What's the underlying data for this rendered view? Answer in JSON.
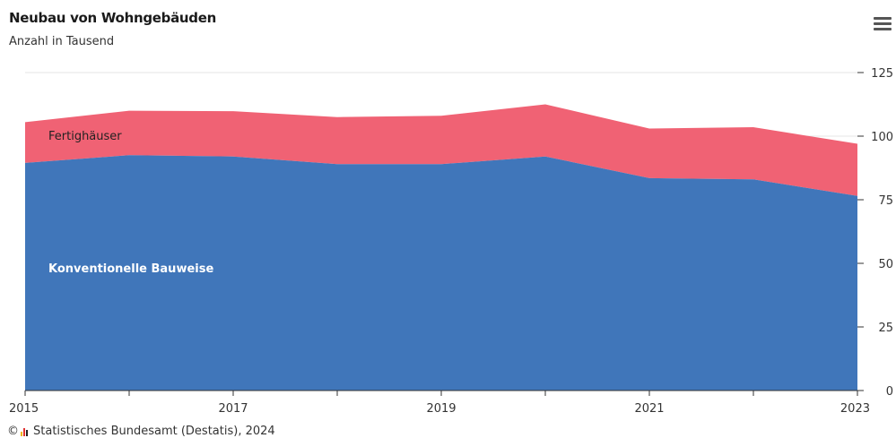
{
  "header": {
    "title": "Neubau von Wohngebäuden",
    "subtitle": "Anzahl in Tausend"
  },
  "menu": {
    "icon": "hamburger-menu-icon"
  },
  "credit": {
    "copyright": "©",
    "logo_icon": "destatis-logo-icon",
    "text": "Statistisches Bundesamt (Destatis), 2024"
  },
  "colors": {
    "konventionell": "#4076ba",
    "fertighaus": "#f06274",
    "grid": "#e6e6e6",
    "axis": "#333333",
    "text": "#333333"
  },
  "chart_data": {
    "type": "area",
    "stacked": true,
    "title": "Neubau von Wohngebäuden",
    "subtitle": "Anzahl in Tausend",
    "x": [
      2015,
      2016,
      2017,
      2018,
      2019,
      2020,
      2021,
      2022,
      2023
    ],
    "x_tick_labels": [
      "2015",
      "2017",
      "2019",
      "2021",
      "2023"
    ],
    "y_ticks": [
      0,
      25,
      50,
      75,
      100,
      125
    ],
    "ylim": [
      0,
      125
    ],
    "y_axis_side": "right",
    "grid": true,
    "series": [
      {
        "name": "Konventionelle Bauweise",
        "values": [
          89.5,
          92.5,
          92.0,
          89.0,
          89.0,
          92.0,
          83.5,
          83.0,
          76.5
        ]
      },
      {
        "name": "Fertighäuser",
        "values": [
          16.0,
          17.5,
          17.8,
          18.5,
          19.0,
          20.5,
          19.5,
          20.5,
          20.5
        ]
      }
    ]
  }
}
